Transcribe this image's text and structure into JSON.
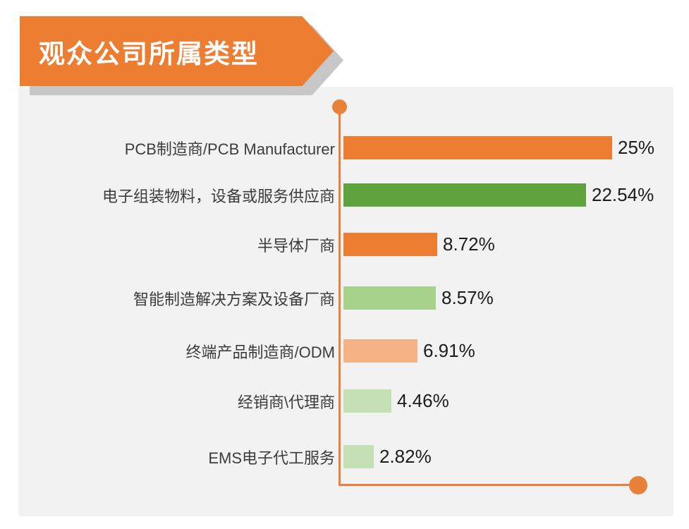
{
  "header": {
    "title": "观众公司所属类型"
  },
  "chart_data": {
    "type": "bar",
    "orientation": "horizontal",
    "title": "观众公司所属类型",
    "xlabel": "",
    "ylabel": "",
    "xlim": [
      0,
      25
    ],
    "grid": false,
    "legend": false,
    "rows": [
      {
        "label": "PCB制造商/PCB Manufacturer",
        "value": 25,
        "value_label": "25%",
        "color": "#ed7d31"
      },
      {
        "label": "电子组装物料，设备或服务供应商",
        "value": 22.54,
        "value_label": "22.54%",
        "color": "#5fa33e"
      },
      {
        "label": "半导体厂商",
        "value": 8.72,
        "value_label": "8.72%",
        "color": "#ed7d31"
      },
      {
        "label": "智能制造解决方案及设备厂商",
        "value": 8.57,
        "value_label": "8.57%",
        "color": "#a6d28c"
      },
      {
        "label": "终端产品制造商/ODM",
        "value": 6.91,
        "value_label": "6.91%",
        "color": "#f4b183"
      },
      {
        "label": "经销商\\代理商",
        "value": 4.46,
        "value_label": "4.46%",
        "color": "#c5e0b4"
      },
      {
        "label": "EMS电子代工服务",
        "value": 2.82,
        "value_label": "2.82%",
        "color": "#c5e0b4"
      }
    ],
    "colors": {
      "accent_orange": "#ed7d31",
      "green": "#5fa33e",
      "light_green": "#a6d28c",
      "light_orange": "#f4b183",
      "pale_green": "#c5e0b4",
      "axis": "#e8813a",
      "panel_background": "#f2f2f2",
      "banner_shadow": "#c7c7c7"
    }
  }
}
